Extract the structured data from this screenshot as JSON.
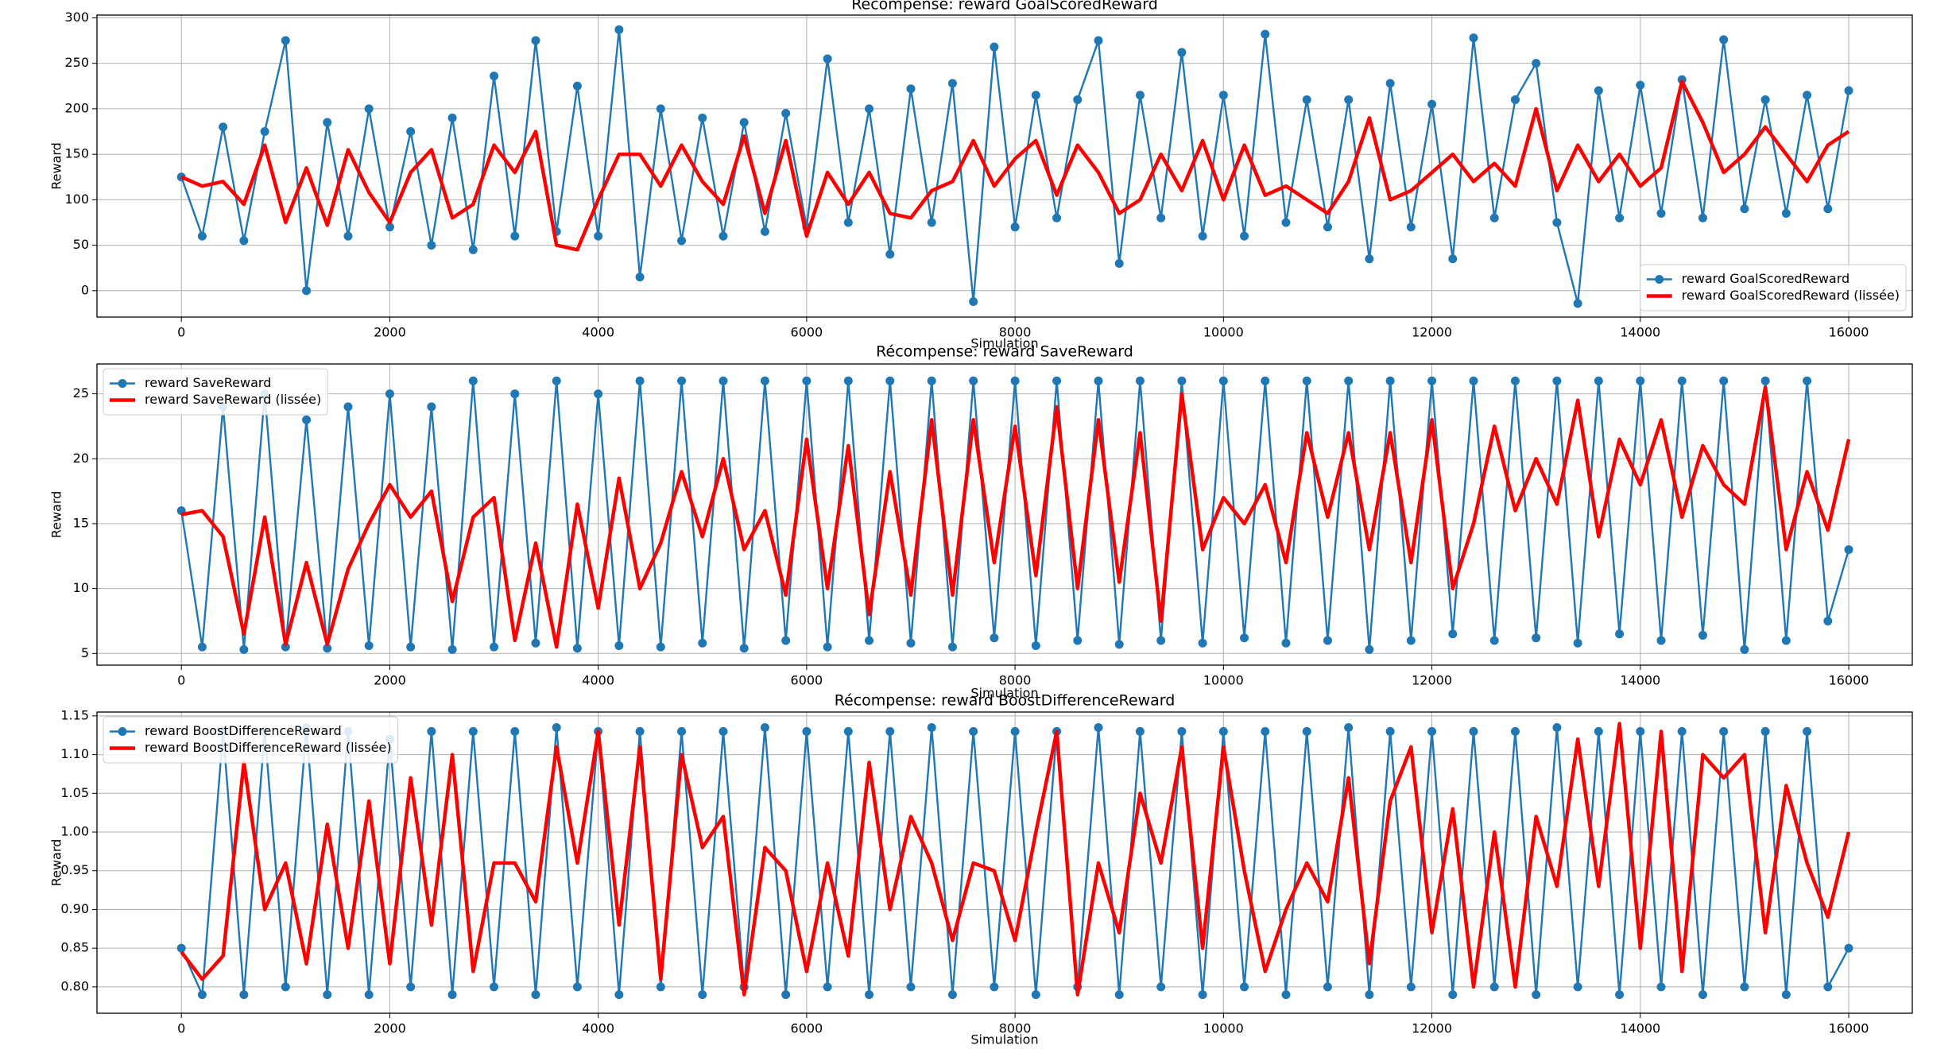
{
  "chart_data": [
    {
      "type": "line",
      "title": "Récompense: reward GoalScoredReward",
      "xlabel": "Simulation",
      "ylabel": "Reward",
      "x": [
        0,
        200,
        400,
        600,
        800,
        1000,
        1200,
        1400,
        1600,
        1800,
        2000,
        2200,
        2400,
        2600,
        2800,
        3000,
        3200,
        3400,
        3600,
        3800,
        4000,
        4200,
        4400,
        4600,
        4800,
        5000,
        5200,
        5400,
        5600,
        5800,
        6000,
        6200,
        6400,
        6600,
        6800,
        7000,
        7200,
        7400,
        7600,
        7800,
        8000,
        8200,
        8400,
        8600,
        8800,
        9000,
        9200,
        9400,
        9600,
        9800,
        10000,
        10200,
        10400,
        10600,
        10800,
        11000,
        11200,
        11400,
        11600,
        11800,
        12000,
        12200,
        12400,
        12600,
        12800,
        13000,
        13200,
        13400,
        13600,
        13800,
        14000,
        14200,
        14400,
        14600,
        14800,
        15000,
        15200,
        15400,
        15600,
        15800,
        16000
      ],
      "series": [
        {
          "name": "reward GoalScoredReward",
          "color": "#1f77b4",
          "marker": "o",
          "values": [
            125,
            60,
            180,
            55,
            175,
            275,
            0,
            185,
            60,
            200,
            70,
            175,
            50,
            190,
            45,
            236,
            60,
            275,
            65,
            225,
            60,
            287,
            15,
            200,
            55,
            190,
            60,
            185,
            65,
            195,
            70,
            255,
            75,
            200,
            40,
            222,
            75,
            228,
            -12,
            268,
            70,
            215,
            80,
            210,
            275,
            30,
            215,
            80,
            262,
            60,
            215,
            60,
            282,
            75,
            210,
            70,
            210,
            35,
            228,
            70,
            205,
            35,
            278,
            80,
            210,
            250,
            75,
            -14,
            220,
            80,
            226,
            85,
            232,
            80,
            276,
            90,
            210,
            85,
            215,
            90,
            220
          ]
        },
        {
          "name": "reward GoalScoredReward (lissée)",
          "color": "#ff0000",
          "values": [
            125,
            115,
            120,
            95,
            160,
            75,
            135,
            72,
            155,
            108,
            75,
            130,
            155,
            80,
            95,
            160,
            130,
            175,
            50,
            45,
            100,
            150,
            150,
            115,
            160,
            120,
            95,
            170,
            85,
            165,
            60,
            130,
            95,
            130,
            85,
            80,
            110,
            120,
            165,
            115,
            145,
            165,
            105,
            160,
            130,
            85,
            100,
            150,
            110,
            165,
            100,
            160,
            105,
            115,
            100,
            85,
            120,
            190,
            100,
            110,
            130,
            150,
            120,
            140,
            115,
            200,
            110,
            160,
            120,
            150,
            115,
            135,
            230,
            185,
            130,
            150,
            180,
            150,
            120,
            160,
            175
          ]
        }
      ],
      "xlim": [
        -810,
        16610
      ],
      "ylim": [
        -29,
        303
      ],
      "xticks": [
        0,
        2000,
        4000,
        6000,
        8000,
        10000,
        12000,
        14000,
        16000
      ],
      "yticks": [
        0,
        50,
        100,
        150,
        200,
        250,
        300
      ],
      "grid": true,
      "legend": "lower right"
    },
    {
      "type": "line",
      "title": "Récompense: reward SaveReward",
      "xlabel": "Simulation",
      "ylabel": "Reward",
      "x": [
        0,
        200,
        400,
        600,
        800,
        1000,
        1200,
        1400,
        1600,
        1800,
        2000,
        2200,
        2400,
        2600,
        2800,
        3000,
        3200,
        3400,
        3600,
        3800,
        4000,
        4200,
        4400,
        4600,
        4800,
        5000,
        5200,
        5400,
        5600,
        5800,
        6000,
        6200,
        6400,
        6600,
        6800,
        7000,
        7200,
        7400,
        7600,
        7800,
        8000,
        8200,
        8400,
        8600,
        8800,
        9000,
        9200,
        9400,
        9600,
        9800,
        10000,
        10200,
        10400,
        10600,
        10800,
        11000,
        11200,
        11400,
        11600,
        11800,
        12000,
        12200,
        12400,
        12600,
        12800,
        13000,
        13200,
        13400,
        13600,
        13800,
        14000,
        14200,
        14400,
        14600,
        14800,
        15000,
        15200,
        15400,
        15600,
        15800,
        16000
      ],
      "series": [
        {
          "name": "reward SaveReward",
          "color": "#1f77b4",
          "marker": "o",
          "values": [
            16,
            5.5,
            24,
            5.3,
            25,
            5.5,
            23,
            5.4,
            24,
            5.6,
            25,
            5.5,
            24,
            5.3,
            26,
            5.5,
            25,
            5.8,
            26,
            5.4,
            25,
            5.6,
            26,
            5.5,
            26,
            5.8,
            26,
            5.4,
            26,
            6,
            26,
            5.5,
            26,
            6,
            26,
            5.8,
            26,
            5.5,
            26,
            6.2,
            26,
            5.6,
            26,
            6,
            26,
            5.7,
            26,
            6,
            26,
            5.8,
            26,
            6.2,
            26,
            5.8,
            26,
            6,
            26,
            5.3,
            26,
            6,
            26,
            6.5,
            26,
            6,
            26,
            6.2,
            26,
            5.8,
            26,
            6.5,
            26,
            6,
            26,
            6.4,
            26,
            5.3,
            26,
            6,
            26,
            7.5,
            13
          ]
        },
        {
          "name": "reward SaveReward (lissée)",
          "color": "#ff0000",
          "values": [
            15.7,
            16,
            14,
            6.5,
            15.5,
            5.7,
            12,
            5.7,
            11.5,
            15,
            18,
            15.5,
            17.5,
            9,
            15.5,
            17,
            6,
            13.5,
            5.5,
            16.5,
            8.5,
            18.5,
            10,
            13.5,
            19,
            14,
            20,
            13,
            16,
            9.5,
            21.5,
            10,
            21,
            8,
            19,
            9.5,
            23,
            9.5,
            23,
            12,
            22.5,
            11,
            24,
            10,
            23,
            10.5,
            22,
            7.5,
            25,
            13,
            17,
            15,
            18,
            12,
            22,
            15.5,
            22,
            13,
            22,
            12,
            23,
            10,
            15,
            22.5,
            16,
            20,
            16.5,
            24.5,
            14,
            21.5,
            18,
            23,
            15.5,
            21,
            18,
            16.5,
            25.5,
            13,
            19,
            14.5,
            21.5
          ]
        }
      ],
      "xlim": [
        -810,
        16610
      ],
      "ylim": [
        4.1,
        27.3
      ],
      "xticks": [
        0,
        2000,
        4000,
        6000,
        8000,
        10000,
        12000,
        14000,
        16000
      ],
      "yticks": [
        5,
        10,
        15,
        20,
        25
      ],
      "grid": true,
      "legend": "upper left"
    },
    {
      "type": "line",
      "title": "Récompense: reward BoostDifferenceReward",
      "xlabel": "Simulation",
      "ylabel": "Reward",
      "x": [
        0,
        200,
        400,
        600,
        800,
        1000,
        1200,
        1400,
        1600,
        1800,
        2000,
        2200,
        2400,
        2600,
        2800,
        3000,
        3200,
        3400,
        3600,
        3800,
        4000,
        4200,
        4400,
        4600,
        4800,
        5000,
        5200,
        5400,
        5600,
        5800,
        6000,
        6200,
        6400,
        6600,
        6800,
        7000,
        7200,
        7400,
        7600,
        7800,
        8000,
        8200,
        8400,
        8600,
        8800,
        9000,
        9200,
        9400,
        9600,
        9800,
        10000,
        10200,
        10400,
        10600,
        10800,
        11000,
        11200,
        11400,
        11600,
        11800,
        12000,
        12200,
        12400,
        12600,
        12800,
        13000,
        13200,
        13400,
        13600,
        13800,
        14000,
        14200,
        14400,
        14600,
        14800,
        15000,
        15200,
        15400,
        15600,
        15800,
        16000
      ],
      "series": [
        {
          "name": "reward BoostDifferenceReward",
          "color": "#1f77b4",
          "marker": "o",
          "values": [
            0.85,
            0.79,
            1.13,
            0.79,
            1.13,
            0.8,
            1.135,
            0.79,
            1.13,
            0.79,
            1.12,
            0.8,
            1.13,
            0.79,
            1.13,
            0.8,
            1.13,
            0.79,
            1.135,
            0.8,
            1.13,
            0.79,
            1.13,
            0.8,
            1.13,
            0.79,
            1.13,
            0.8,
            1.135,
            0.79,
            1.13,
            0.8,
            1.13,
            0.79,
            1.13,
            0.8,
            1.135,
            0.79,
            1.13,
            0.8,
            1.13,
            0.79,
            1.13,
            0.8,
            1.135,
            0.79,
            1.13,
            0.8,
            1.13,
            0.79,
            1.13,
            0.8,
            1.13,
            0.79,
            1.13,
            0.8,
            1.135,
            0.79,
            1.13,
            0.8,
            1.13,
            0.79,
            1.13,
            0.8,
            1.13,
            0.79,
            1.135,
            0.8,
            1.13,
            0.79,
            1.13,
            0.8,
            1.13,
            0.79,
            1.13,
            0.8,
            1.13,
            0.79,
            1.13,
            0.8,
            0.85
          ]
        },
        {
          "name": "reward BoostDifferenceReward (lissée)",
          "color": "#ff0000",
          "values": [
            0.845,
            0.81,
            0.84,
            1.09,
            0.9,
            0.96,
            0.83,
            1.01,
            0.85,
            1.04,
            0.83,
            1.07,
            0.88,
            1.1,
            0.82,
            0.96,
            0.96,
            0.91,
            1.11,
            0.96,
            1.13,
            0.88,
            1.11,
            0.81,
            1.1,
            0.98,
            1.02,
            0.79,
            0.98,
            0.95,
            0.82,
            0.96,
            0.84,
            1.09,
            0.9,
            1.02,
            0.96,
            0.86,
            0.96,
            0.95,
            0.86,
            1.0,
            1.13,
            0.79,
            0.96,
            0.87,
            1.05,
            0.96,
            1.11,
            0.85,
            1.11,
            0.95,
            0.82,
            0.9,
            0.96,
            0.91,
            1.07,
            0.83,
            1.04,
            1.11,
            0.87,
            1.03,
            0.8,
            1.0,
            0.8,
            1.02,
            0.93,
            1.12,
            0.93,
            1.14,
            0.85,
            1.13,
            0.82,
            1.1,
            1.07,
            1.1,
            0.87,
            1.06,
            0.96,
            0.89,
            1.0
          ]
        }
      ],
      "xlim": [
        -810,
        16610
      ],
      "ylim": [
        0.766,
        1.155
      ],
      "xticks": [
        0,
        2000,
        4000,
        6000,
        8000,
        10000,
        12000,
        14000,
        16000
      ],
      "yticks": [
        {
          "value": 0.8,
          "label": "0.80"
        },
        {
          "value": 0.85,
          "label": "0.85"
        },
        {
          "value": 0.9,
          "label": "0.90"
        },
        {
          "value": 0.95,
          "label": "0.95"
        },
        {
          "value": 1.0,
          "label": "1.00"
        },
        {
          "value": 1.05,
          "label": "1.05"
        },
        {
          "value": 1.1,
          "label": "1.10"
        },
        {
          "value": 1.15,
          "label": "1.15"
        }
      ],
      "grid": true,
      "legend": "upper left"
    }
  ]
}
